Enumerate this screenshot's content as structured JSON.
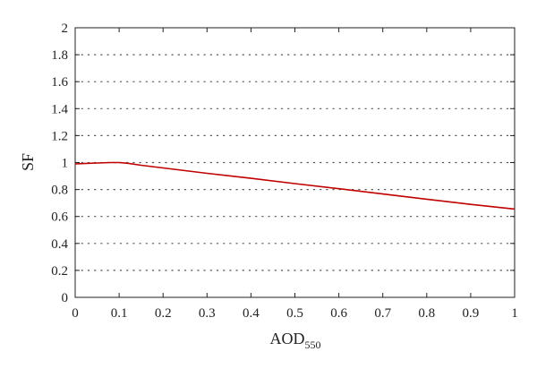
{
  "chart_data": {
    "type": "line",
    "title": "",
    "xlabel": "AOD",
    "xlabel_subscript": "550",
    "ylabel": "SF",
    "xlim": [
      0,
      1
    ],
    "ylim": [
      0,
      2
    ],
    "x_ticks": [
      "0",
      "0.1",
      "0.2",
      "0.3",
      "0.4",
      "0.5",
      "0.6",
      "0.7",
      "0.8",
      "0.9",
      "1"
    ],
    "y_ticks": [
      "0",
      "0.2",
      "0.4",
      "0.6",
      "0.8",
      "1",
      "1.2",
      "1.4",
      "1.6",
      "1.8",
      "2"
    ],
    "grid": "horizontal dotted",
    "series": [
      {
        "color": "#c00000",
        "x": [
          0,
          0.02,
          0.05,
          0.08,
          0.1,
          0.12,
          0.15,
          0.2,
          0.3,
          0.4,
          0.5,
          0.6,
          0.7,
          0.8,
          0.9,
          1.0
        ],
        "y": [
          0.99,
          0.993,
          0.997,
          1.0,
          1.0,
          0.995,
          0.98,
          0.96,
          0.92,
          0.883,
          0.844,
          0.806,
          0.767,
          0.728,
          0.69,
          0.655
        ]
      }
    ]
  }
}
